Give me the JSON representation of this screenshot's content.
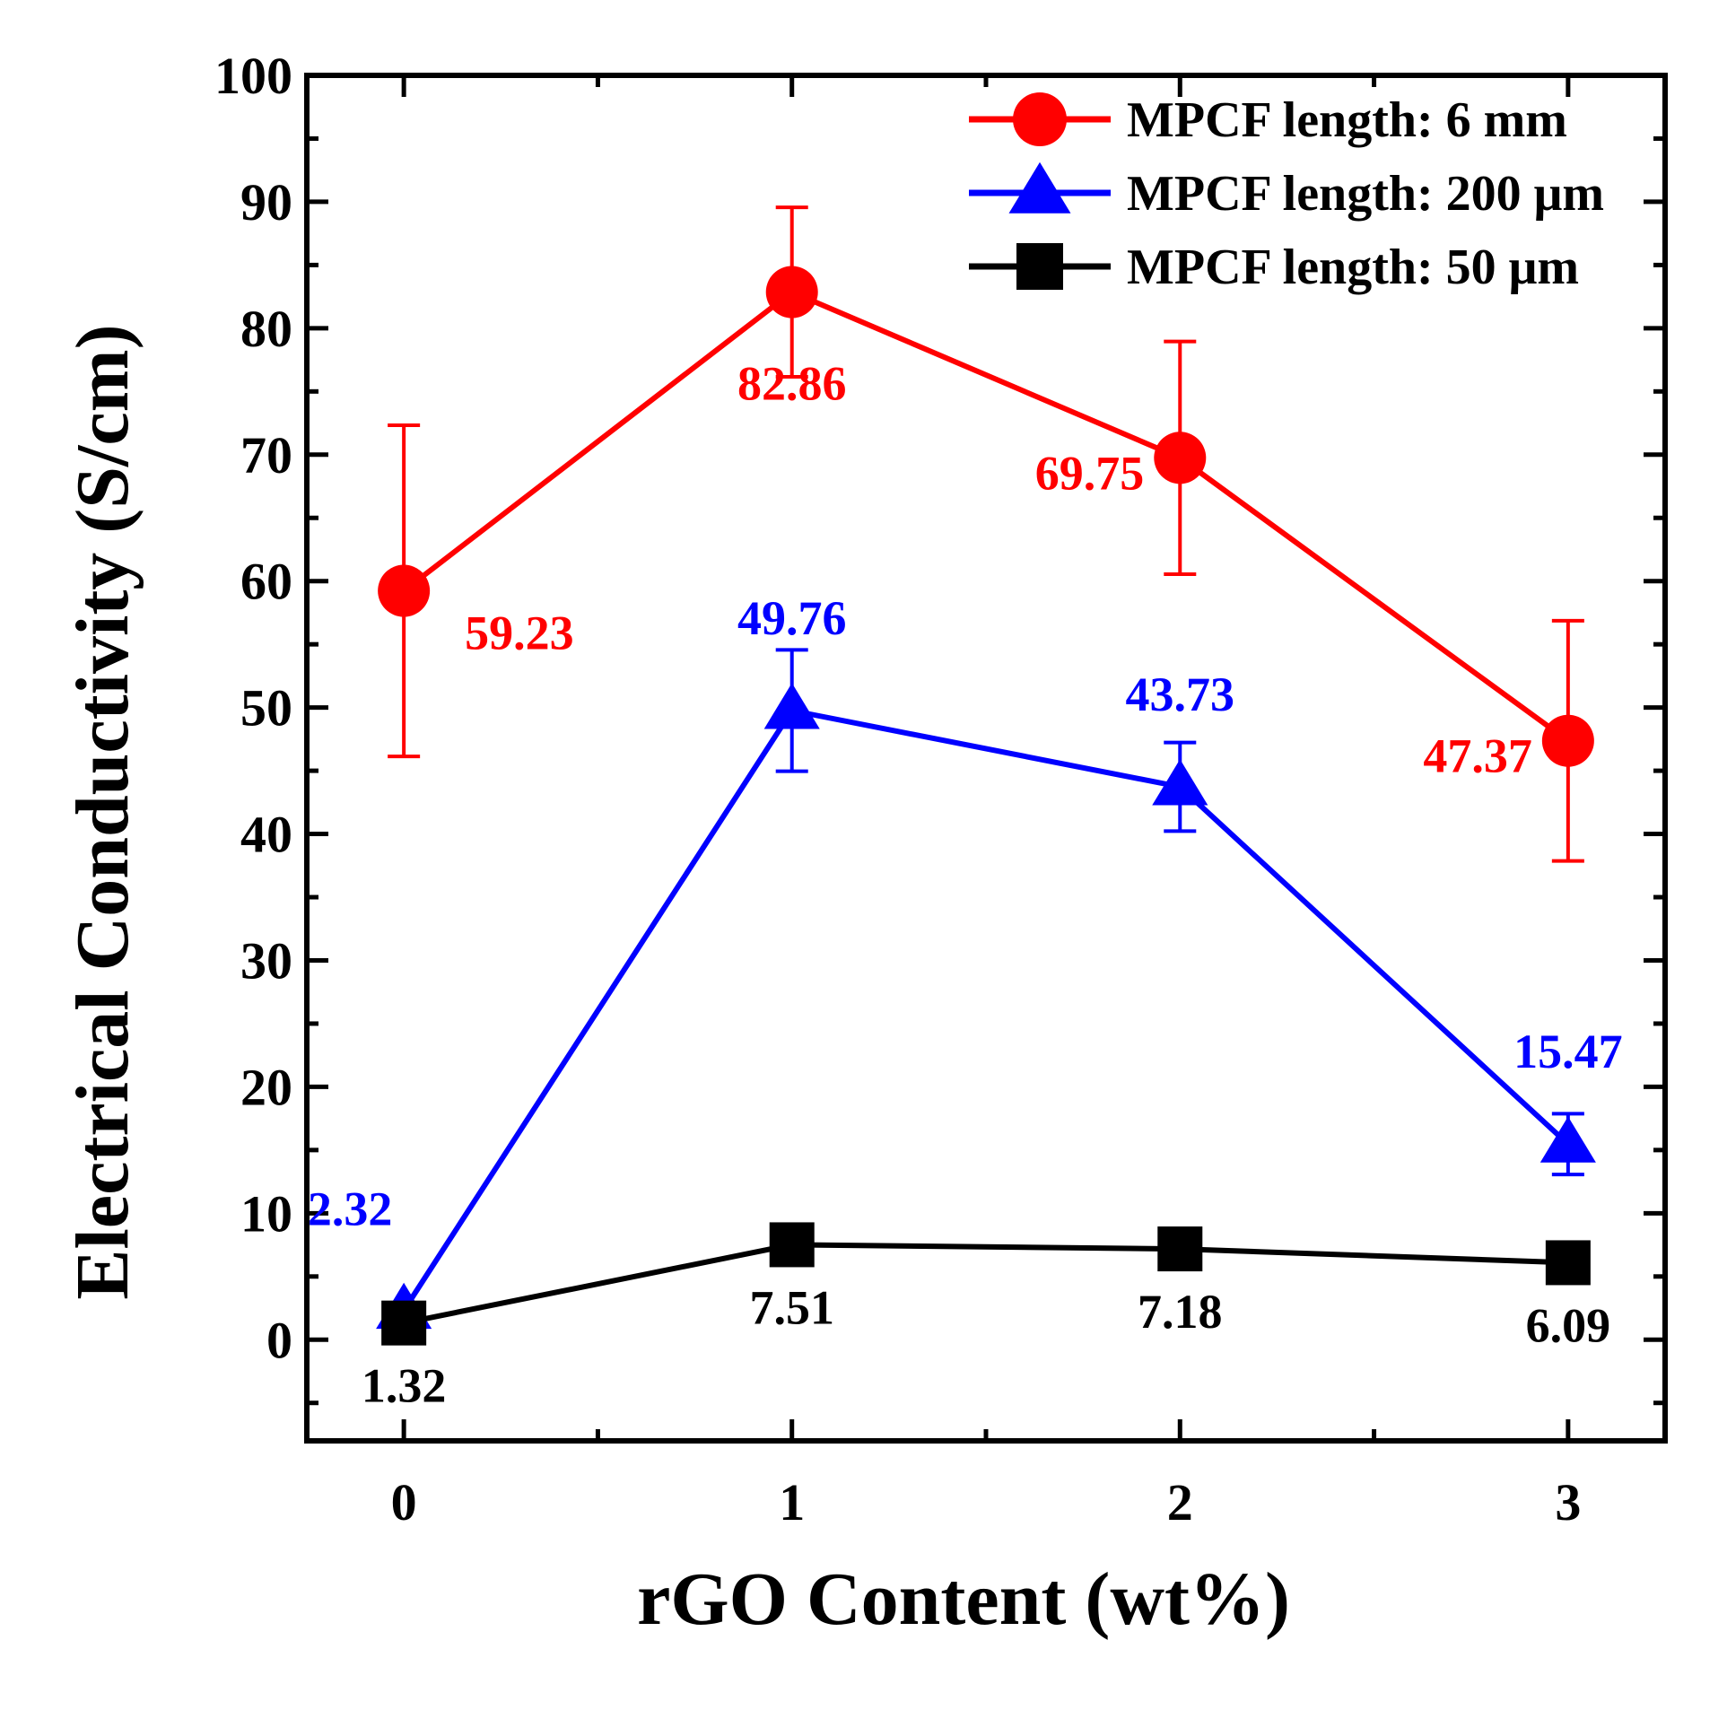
{
  "chart_data": {
    "type": "line",
    "xlabel": "rGO Content (wt%)",
    "ylabel": "Electrical Conductivity (S/cm)",
    "xlim": [
      -0.25,
      3.25
    ],
    "ylim": [
      -8,
      100
    ],
    "x": [
      0,
      1,
      2,
      3
    ],
    "xticks": [
      "0",
      "1",
      "2",
      "3"
    ],
    "yticks": [
      "0",
      "10",
      "20",
      "30",
      "40",
      "50",
      "60",
      "70",
      "80",
      "90",
      "100"
    ],
    "legend_position": "top-right",
    "series": [
      {
        "name": "MPCF length: 6 mm",
        "color": "#ff0000",
        "marker": "circle",
        "values": [
          59.23,
          82.86,
          69.75,
          47.37
        ],
        "errors": [
          13.1,
          6.7,
          9.2,
          9.5
        ],
        "labels": [
          "59.23",
          "82.86",
          "69.75",
          "47.37"
        ],
        "label_positions": [
          "below-right",
          "below",
          "left",
          "left"
        ]
      },
      {
        "name": "MPCF length: 200 μm",
        "color": "#0000ff",
        "marker": "triangle",
        "values": [
          2.32,
          49.76,
          43.73,
          15.47
        ],
        "errors": [
          0.0,
          4.8,
          3.5,
          2.4
        ],
        "labels": [
          "2.32",
          "49.76",
          "43.73",
          "15.47"
        ],
        "label_positions": [
          "above",
          "above",
          "above",
          "above"
        ]
      },
      {
        "name": "MPCF length: 50 μm",
        "color": "#000000",
        "marker": "square",
        "values": [
          1.32,
          7.51,
          7.18,
          6.09
        ],
        "errors": [
          0,
          0,
          0,
          0
        ],
        "labels": [
          "1.32",
          "7.51",
          "7.18",
          "6.09"
        ],
        "label_positions": [
          "below",
          "below",
          "below",
          "below"
        ]
      }
    ]
  }
}
